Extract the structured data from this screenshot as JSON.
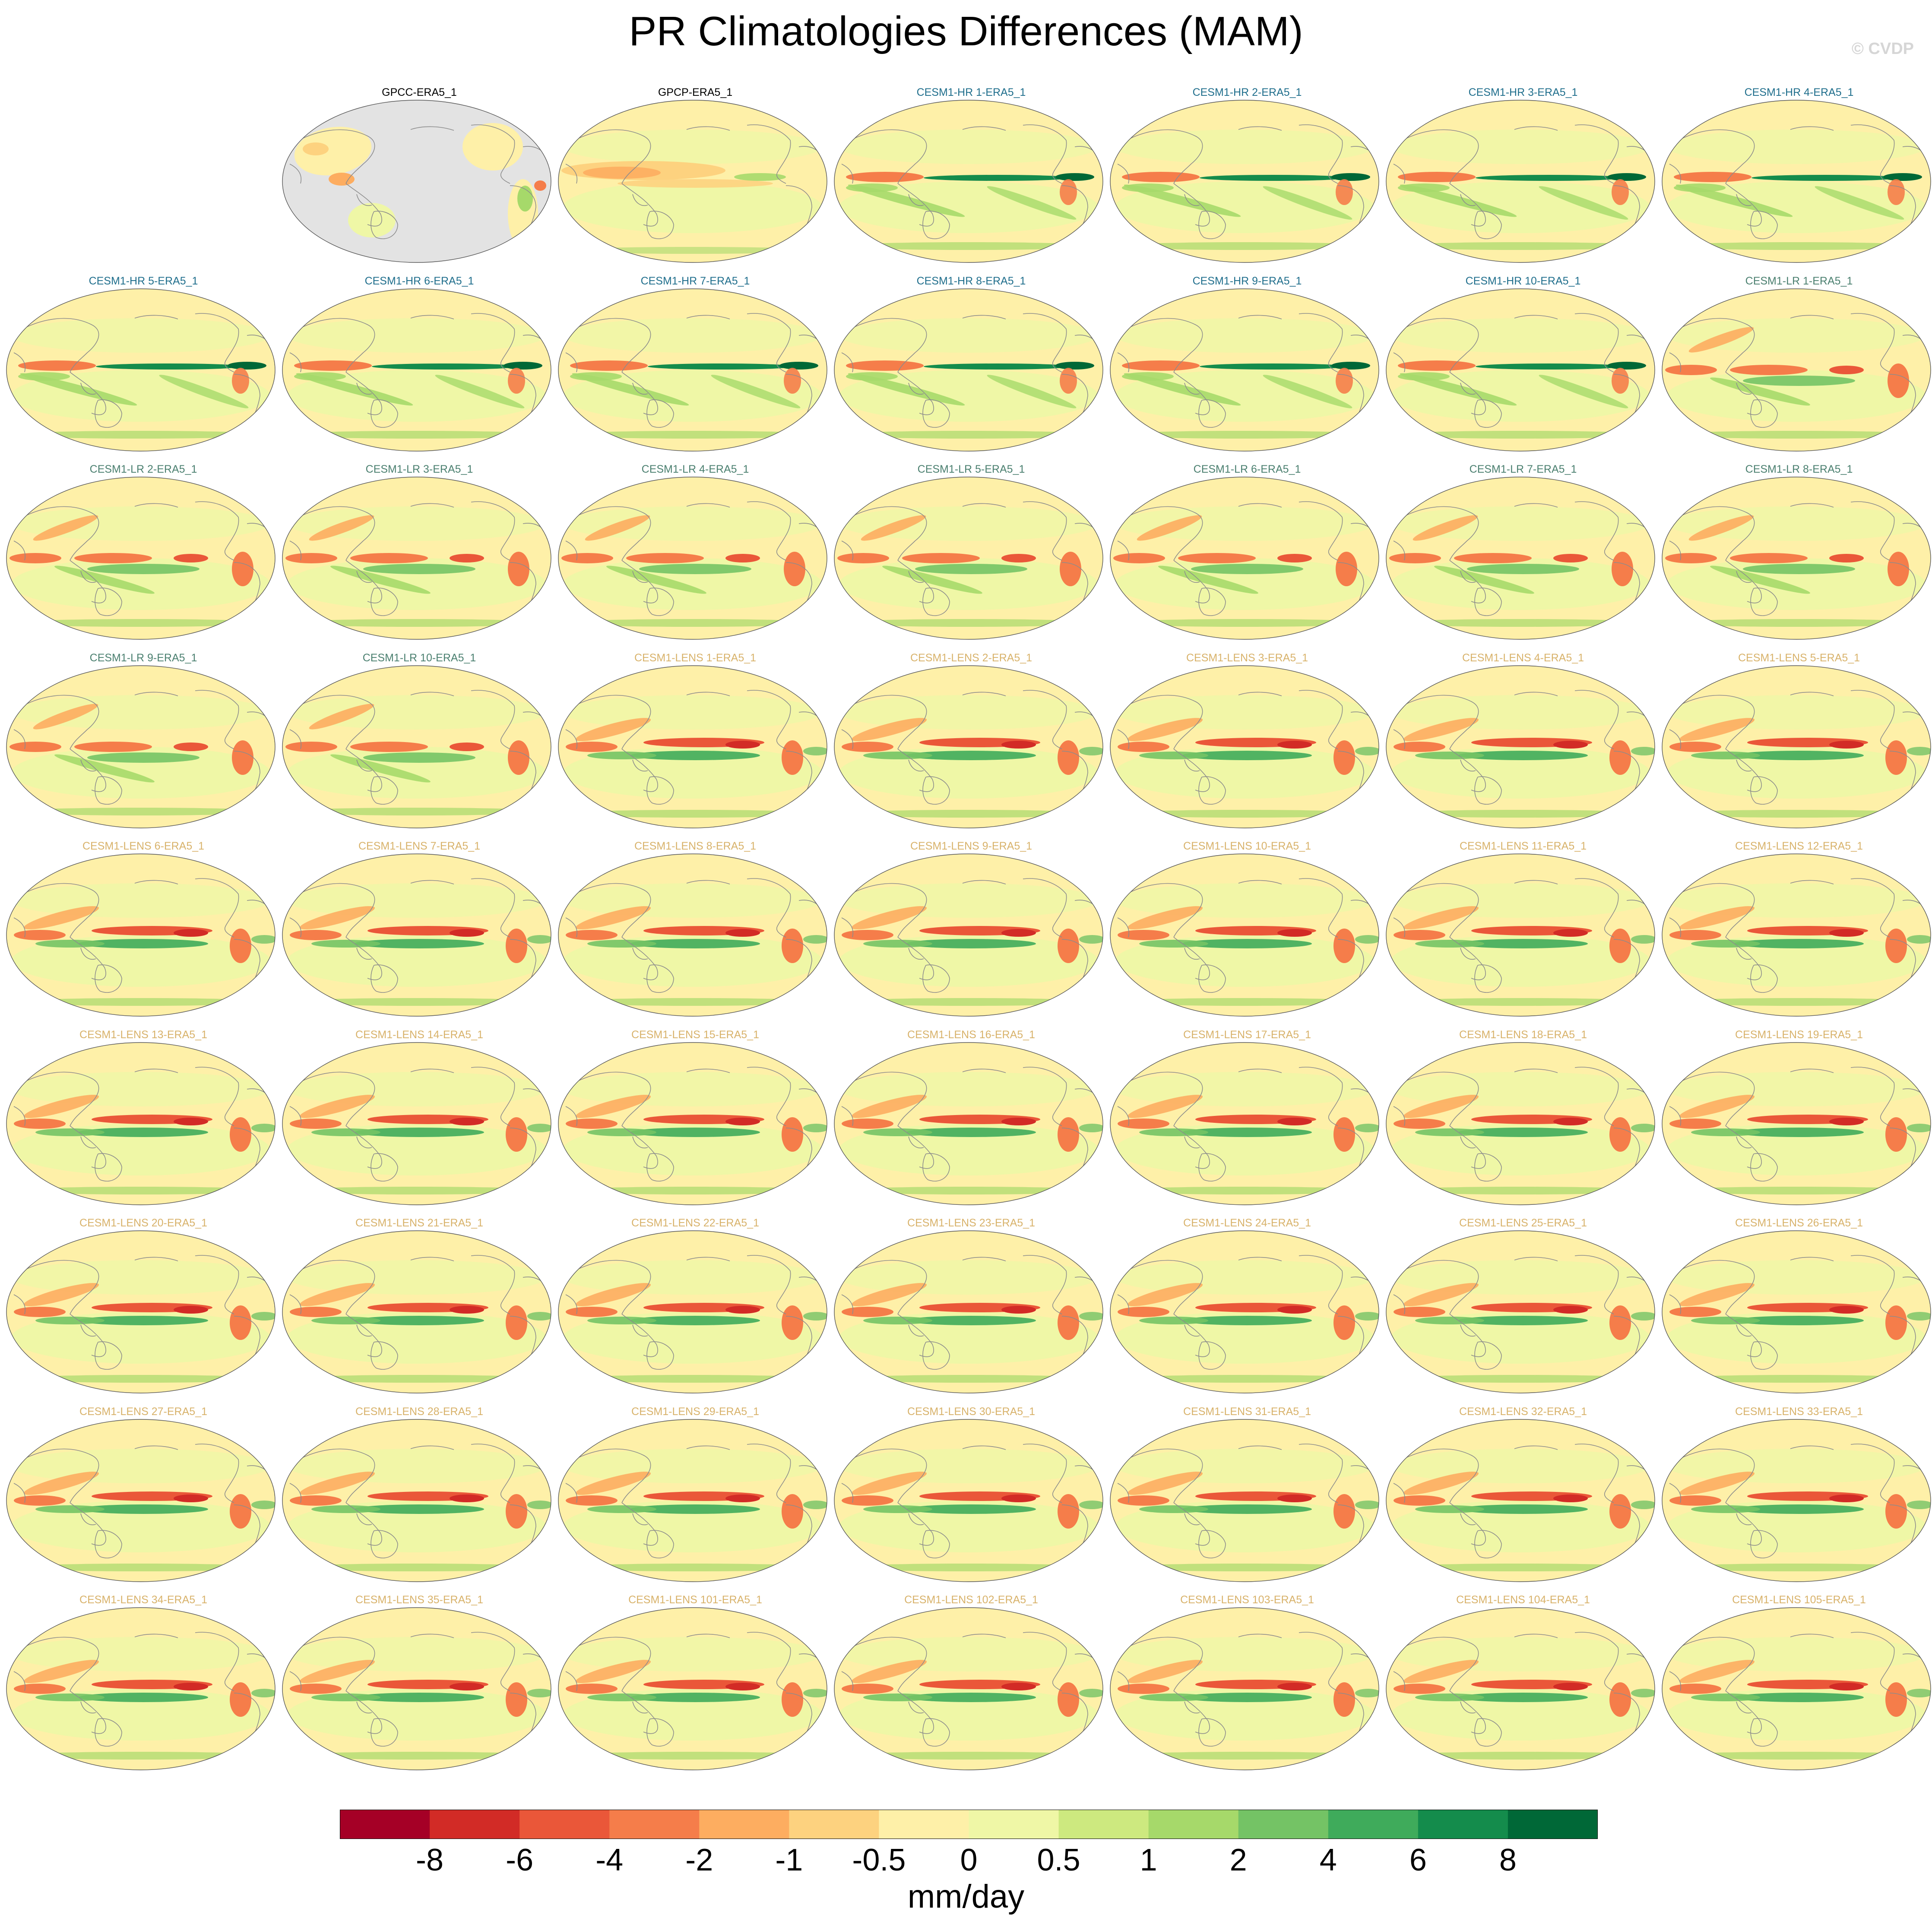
{
  "title": "PR Climatologies Differences (MAM)",
  "watermark": "© CVDP",
  "colors": {
    "obs_title": "#000000",
    "hr_title": "#1f6e8c",
    "lr_title": "#4a7f6f",
    "lens_title": "#d8b26a",
    "land_mask": "#e3e3e3",
    "coastline": "#8c8c8c"
  },
  "chart_data": {
    "type": "heatmap",
    "title": "PR Climatologies Differences (MAM)",
    "projection": "Robinson (Pacific-centered)",
    "grid": "7 columns x 9 rows, first cell empty",
    "panels": [
      {
        "title": "GPCC-ERA5_1",
        "group": "obs",
        "land_only": true
      },
      {
        "title": "GPCP-ERA5_1",
        "group": "obs"
      },
      {
        "title": "CESM1-HR 1-ERA5_1",
        "group": "hr"
      },
      {
        "title": "CESM1-HR 2-ERA5_1",
        "group": "hr"
      },
      {
        "title": "CESM1-HR 3-ERA5_1",
        "group": "hr"
      },
      {
        "title": "CESM1-HR 4-ERA5_1",
        "group": "hr"
      },
      {
        "title": "CESM1-HR 5-ERA5_1",
        "group": "hr"
      },
      {
        "title": "CESM1-HR 6-ERA5_1",
        "group": "hr"
      },
      {
        "title": "CESM1-HR 7-ERA5_1",
        "group": "hr"
      },
      {
        "title": "CESM1-HR 8-ERA5_1",
        "group": "hr"
      },
      {
        "title": "CESM1-HR 9-ERA5_1",
        "group": "hr"
      },
      {
        "title": "CESM1-HR 10-ERA5_1",
        "group": "hr"
      },
      {
        "title": "CESM1-LR 1-ERA5_1",
        "group": "lr"
      },
      {
        "title": "CESM1-LR 2-ERA5_1",
        "group": "lr"
      },
      {
        "title": "CESM1-LR 3-ERA5_1",
        "group": "lr"
      },
      {
        "title": "CESM1-LR 4-ERA5_1",
        "group": "lr"
      },
      {
        "title": "CESM1-LR 5-ERA5_1",
        "group": "lr"
      },
      {
        "title": "CESM1-LR 6-ERA5_1",
        "group": "lr"
      },
      {
        "title": "CESM1-LR 7-ERA5_1",
        "group": "lr"
      },
      {
        "title": "CESM1-LR 8-ERA5_1",
        "group": "lr"
      },
      {
        "title": "CESM1-LR 9-ERA5_1",
        "group": "lr"
      },
      {
        "title": "CESM1-LR 10-ERA5_1",
        "group": "lr"
      },
      {
        "title": "CESM1-LENS 1-ERA5_1",
        "group": "lens"
      },
      {
        "title": "CESM1-LENS 2-ERA5_1",
        "group": "lens"
      },
      {
        "title": "CESM1-LENS 3-ERA5_1",
        "group": "lens"
      },
      {
        "title": "CESM1-LENS 4-ERA5_1",
        "group": "lens"
      },
      {
        "title": "CESM1-LENS 5-ERA5_1",
        "group": "lens"
      },
      {
        "title": "CESM1-LENS 6-ERA5_1",
        "group": "lens"
      },
      {
        "title": "CESM1-LENS 7-ERA5_1",
        "group": "lens"
      },
      {
        "title": "CESM1-LENS 8-ERA5_1",
        "group": "lens"
      },
      {
        "title": "CESM1-LENS 9-ERA5_1",
        "group": "lens"
      },
      {
        "title": "CESM1-LENS 10-ERA5_1",
        "group": "lens"
      },
      {
        "title": "CESM1-LENS 11-ERA5_1",
        "group": "lens"
      },
      {
        "title": "CESM1-LENS 12-ERA5_1",
        "group": "lens"
      },
      {
        "title": "CESM1-LENS 13-ERA5_1",
        "group": "lens"
      },
      {
        "title": "CESM1-LENS 14-ERA5_1",
        "group": "lens"
      },
      {
        "title": "CESM1-LENS 15-ERA5_1",
        "group": "lens"
      },
      {
        "title": "CESM1-LENS 16-ERA5_1",
        "group": "lens"
      },
      {
        "title": "CESM1-LENS 17-ERA5_1",
        "group": "lens"
      },
      {
        "title": "CESM1-LENS 18-ERA5_1",
        "group": "lens"
      },
      {
        "title": "CESM1-LENS 19-ERA5_1",
        "group": "lens"
      },
      {
        "title": "CESM1-LENS 20-ERA5_1",
        "group": "lens"
      },
      {
        "title": "CESM1-LENS 21-ERA5_1",
        "group": "lens"
      },
      {
        "title": "CESM1-LENS 22-ERA5_1",
        "group": "lens"
      },
      {
        "title": "CESM1-LENS 23-ERA5_1",
        "group": "lens"
      },
      {
        "title": "CESM1-LENS 24-ERA5_1",
        "group": "lens"
      },
      {
        "title": "CESM1-LENS 25-ERA5_1",
        "group": "lens"
      },
      {
        "title": "CESM1-LENS 26-ERA5_1",
        "group": "lens"
      },
      {
        "title": "CESM1-LENS 27-ERA5_1",
        "group": "lens"
      },
      {
        "title": "CESM1-LENS 28-ERA5_1",
        "group": "lens"
      },
      {
        "title": "CESM1-LENS 29-ERA5_1",
        "group": "lens"
      },
      {
        "title": "CESM1-LENS 30-ERA5_1",
        "group": "lens"
      },
      {
        "title": "CESM1-LENS 31-ERA5_1",
        "group": "lens"
      },
      {
        "title": "CESM1-LENS 32-ERA5_1",
        "group": "lens"
      },
      {
        "title": "CESM1-LENS 33-ERA5_1",
        "group": "lens"
      },
      {
        "title": "CESM1-LENS 34-ERA5_1",
        "group": "lens"
      },
      {
        "title": "CESM1-LENS 35-ERA5_1",
        "group": "lens"
      },
      {
        "title": "CESM1-LENS 101-ERA5_1",
        "group": "lens"
      },
      {
        "title": "CESM1-LENS 102-ERA5_1",
        "group": "lens"
      },
      {
        "title": "CESM1-LENS 103-ERA5_1",
        "group": "lens"
      },
      {
        "title": "CESM1-LENS 104-ERA5_1",
        "group": "lens"
      },
      {
        "title": "CESM1-LENS 105-ERA5_1",
        "group": "lens"
      }
    ],
    "colorbar": {
      "levels": [
        "-8",
        "-6",
        "-4",
        "-2",
        "-1",
        "-0.5",
        "0",
        "0.5",
        "1",
        "2",
        "4",
        "6",
        "8"
      ],
      "colors": [
        "#a50026",
        "#d22b26",
        "#ea5739",
        "#f57d4a",
        "#fdad60",
        "#fdd27f",
        "#fef0a8",
        "#eff7a6",
        "#cde97f",
        "#a6d96a",
        "#74c365",
        "#3fab5b",
        "#148c4c",
        "#006837"
      ],
      "units": "mm/day"
    }
  }
}
